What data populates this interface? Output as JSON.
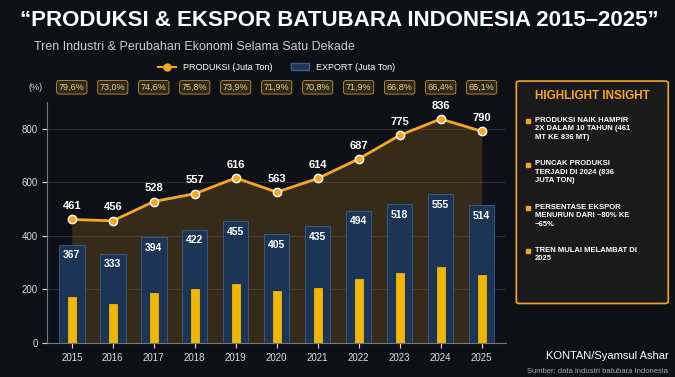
{
  "chart_data": {
    "type": "bar",
    "title": "“PRODUKSI & EKSPOR BATUBARA INDONESIA 2015–2025”",
    "subtitle": "Tren Industri & Perubahan Ekonomi Selama Satu Dekade",
    "categories": [
      "2015",
      "2016",
      "2017",
      "2018",
      "2019",
      "2020",
      "2021",
      "2022",
      "2023",
      "2024",
      "2025"
    ],
    "series": [
      {
        "name": "PRODUKSI (Juta Ton)",
        "type": "line",
        "color": "#f5a623",
        "marker": "o",
        "line_style": "solid",
        "data_labels": true,
        "values": [
          461,
          456,
          528,
          557,
          616,
          563,
          614,
          687,
          775,
          836,
          790
        ]
      },
      {
        "name": "EXPORT (Juta Ton)",
        "type": "bar",
        "color": "#1c3557",
        "data_labels": true,
        "values": [
          367,
          333,
          394,
          422,
          455,
          405,
          435,
          494,
          518,
          555,
          514
        ]
      },
      {
        "type": "bar",
        "color": "#f2b705",
        "values": [
          170,
          145,
          186,
          202,
          222,
          194,
          206,
          238,
          263,
          283,
          255
        ]
      }
    ],
    "export_share": {
      "label": "(%)",
      "values": [
        79.6,
        73.0,
        74.6,
        75.8,
        73.9,
        71.9,
        70.8,
        71.9,
        66.8,
        66.4,
        65.1
      ],
      "value_labels": [
        "79,6%",
        "73,0%",
        "74,6%",
        "75,8%",
        "73,9%",
        "71,9%",
        "70,8%",
        "71,9%",
        "66,8%",
        "66,4%",
        "65,1%"
      ]
    },
    "ylim": [
      0,
      900
    ],
    "yticks": [
      0,
      200,
      400,
      600,
      800
    ],
    "grid": true,
    "legend": "upper center",
    "highlight": {
      "title": "HIGHLIGHT INSIGHT",
      "items": [
        "PRODUKSI NAIK HAMPIR 2X DALAM 10 TAHUN (461 MT KE 836 MT)",
        "PUNCAK PRODUKSI TERJADI DI 2024 (836 JUTA TON)",
        "PERSENTASE EKSPOR MENURUN DARI ~80% KE ~65%",
        "TREN MULAI MELAMBAT DI 2025"
      ]
    },
    "credit": "KONTAN/Syamsul Ashar",
    "source": "Sumber: data industri batubara Indonesia"
  }
}
